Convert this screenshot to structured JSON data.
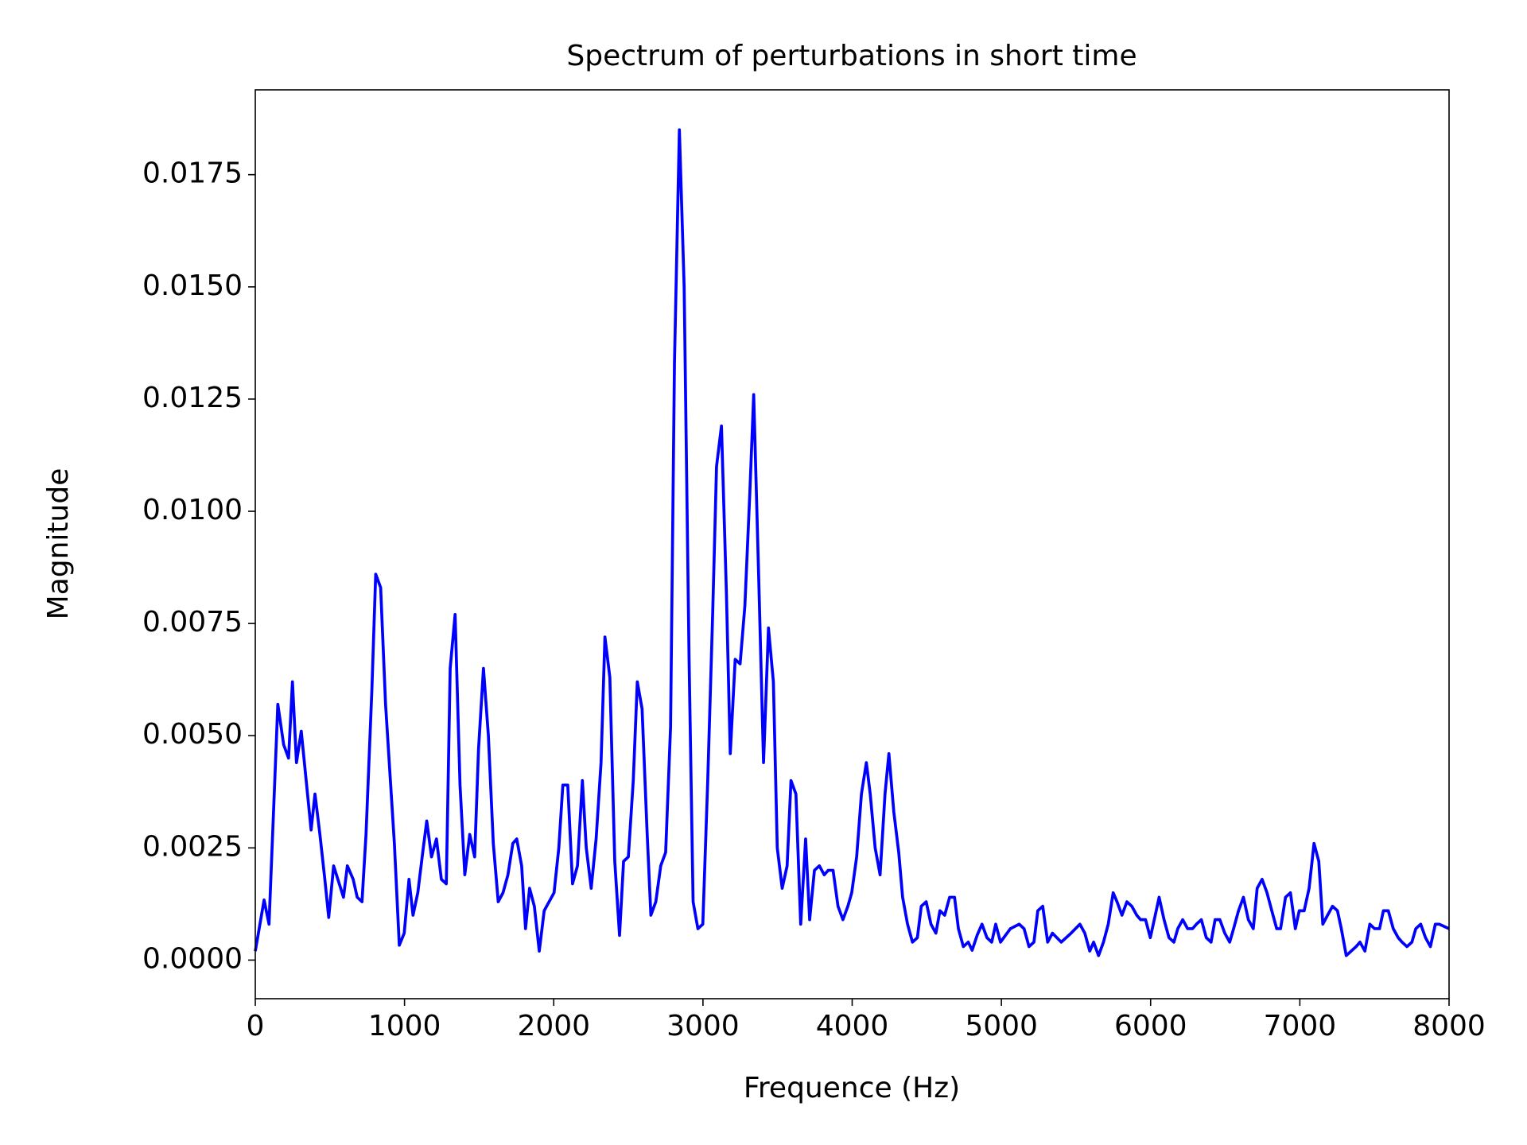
{
  "chart_data": {
    "type": "line",
    "title": "Spectrum of perturbations in short time",
    "x_label": "Frequence (Hz)",
    "y_label": "Magnitude",
    "xlim": [
      0,
      8000
    ],
    "ylim": [
      -0.00086,
      0.01939
    ],
    "xticks": [
      0,
      1000,
      2000,
      3000,
      4000,
      5000,
      6000,
      7000,
      8000
    ],
    "yticks": [
      {
        "value": 0,
        "label": "0.0000"
      },
      {
        "value": 0.0025,
        "label": "0.0025"
      },
      {
        "value": 0.005,
        "label": "0.0050"
      },
      {
        "value": 0.0075,
        "label": "0.0075"
      },
      {
        "value": 0.01,
        "label": "0.0100"
      },
      {
        "value": 0.0125,
        "label": "0.0125"
      },
      {
        "value": 0.015,
        "label": "0.0150"
      },
      {
        "value": 0.0175,
        "label": "0.0175"
      }
    ],
    "grid": false,
    "series": [
      {
        "color": "#0000ff",
        "x": [
          0,
          59,
          92,
          151,
          190,
          223,
          249,
          276,
          308,
          374,
          400,
          433,
          466,
          492,
          525,
          591,
          617,
          656,
          683,
          715,
          742,
          781,
          807,
          840,
          873,
          932,
          965,
          998,
          1030,
          1057,
          1089,
          1122,
          1149,
          1181,
          1214,
          1247,
          1280,
          1306,
          1339,
          1372,
          1404,
          1437,
          1470,
          1496,
          1529,
          1562,
          1595,
          1628,
          1660,
          1693,
          1726,
          1752,
          1785,
          1811,
          1838,
          1870,
          1903,
          1936,
          2002,
          2034,
          2061,
          2094,
          2126,
          2159,
          2192,
          2218,
          2251,
          2284,
          2317,
          2343,
          2376,
          2409,
          2441,
          2468,
          2500,
          2533,
          2560,
          2592,
          2625,
          2651,
          2684,
          2717,
          2750,
          2783,
          2809,
          2842,
          2874,
          2907,
          2934,
          2966,
          2999,
          3032,
          3065,
          3091,
          3124,
          3157,
          3183,
          3216,
          3249,
          3281,
          3314,
          3340,
          3373,
          3406,
          3439,
          3472,
          3498,
          3531,
          3564,
          3590,
          3623,
          3655,
          3688,
          3715,
          3747,
          3780,
          3813,
          3839,
          3872,
          3905,
          3938,
          3971,
          3997,
          4030,
          4062,
          4095,
          4121,
          4154,
          4187,
          4220,
          4246,
          4279,
          4312,
          4338,
          4371,
          4404,
          4437,
          4463,
          4496,
          4528,
          4561,
          4588,
          4620,
          4653,
          4686,
          4712,
          4745,
          4778,
          4804,
          4837,
          4870,
          4903,
          4935,
          4962,
          4994,
          5060,
          5119,
          5152,
          5185,
          5218,
          5244,
          5277,
          5310,
          5342,
          5401,
          5434,
          5467,
          5526,
          5559,
          5592,
          5618,
          5651,
          5684,
          5716,
          5749,
          5775,
          5808,
          5841,
          5874,
          5907,
          5933,
          5966,
          5998,
          6031,
          6057,
          6090,
          6123,
          6156,
          6182,
          6215,
          6248,
          6281,
          6307,
          6340,
          6373,
          6405,
          6432,
          6464,
          6497,
          6530,
          6556,
          6589,
          6622,
          6655,
          6688,
          6714,
          6747,
          6780,
          6812,
          6845,
          6871,
          6904,
          6937,
          6970,
          6996,
          7029,
          7062,
          7095,
          7127,
          7154,
          7186,
          7219,
          7252,
          7278,
          7311,
          7344,
          7377,
          7403,
          7436,
          7469,
          7501,
          7534,
          7560,
          7593,
          7626,
          7659,
          7685,
          7718,
          7751,
          7777,
          7810,
          7842,
          7875,
          7908,
          7934,
          8000
        ],
        "values": [
          0.0002,
          0.00134,
          0.0008,
          0.0057,
          0.0048,
          0.0045,
          0.0062,
          0.0044,
          0.0051,
          0.0029,
          0.0037,
          0.0028,
          0.0018,
          0.00095,
          0.0021,
          0.0014,
          0.0021,
          0.0018,
          0.0014,
          0.0013,
          0.0028,
          0.006,
          0.0086,
          0.0083,
          0.0057,
          0.0026,
          0.00033,
          0.0006,
          0.0018,
          0.001,
          0.0015,
          0.0024,
          0.0031,
          0.0023,
          0.0027,
          0.0018,
          0.0017,
          0.0065,
          0.0077,
          0.0039,
          0.0019,
          0.0028,
          0.0023,
          0.0047,
          0.0065,
          0.005,
          0.0026,
          0.0013,
          0.0015,
          0.0019,
          0.0026,
          0.0027,
          0.0021,
          0.0007,
          0.0016,
          0.0012,
          0.0002,
          0.0011,
          0.0015,
          0.0025,
          0.0039,
          0.0039,
          0.0017,
          0.0021,
          0.004,
          0.0025,
          0.0016,
          0.0027,
          0.0044,
          0.0072,
          0.0063,
          0.0022,
          0.00055,
          0.0022,
          0.0023,
          0.004,
          0.0062,
          0.0056,
          0.0029,
          0.001,
          0.0013,
          0.0021,
          0.0024,
          0.0052,
          0.0133,
          0.0185,
          0.015,
          0.0067,
          0.0013,
          0.0007,
          0.0008,
          0.004,
          0.0077,
          0.011,
          0.0119,
          0.0082,
          0.0046,
          0.0067,
          0.0066,
          0.0079,
          0.0104,
          0.0126,
          0.0086,
          0.0044,
          0.0074,
          0.0062,
          0.0025,
          0.0016,
          0.0021,
          0.004,
          0.0037,
          0.0008,
          0.0027,
          0.0009,
          0.002,
          0.0021,
          0.0019,
          0.002,
          0.002,
          0.0012,
          0.0009,
          0.0012,
          0.0015,
          0.0023,
          0.0037,
          0.0044,
          0.0037,
          0.0025,
          0.0019,
          0.0037,
          0.0046,
          0.0033,
          0.0024,
          0.0014,
          0.0008,
          0.0004,
          0.0005,
          0.0012,
          0.0013,
          0.0008,
          0.0006,
          0.0011,
          0.001,
          0.0014,
          0.0014,
          0.0007,
          0.0003,
          0.0004,
          0.00022,
          0.00055,
          0.0008,
          0.0005,
          0.0004,
          0.0008,
          0.0004,
          0.0007,
          0.0008,
          0.0007,
          0.0003,
          0.0004,
          0.0011,
          0.0012,
          0.0004,
          0.0006,
          0.0004,
          0.0005,
          0.0006,
          0.0008,
          0.0006,
          0.0002,
          0.0004,
          0.0001,
          0.0004,
          0.0008,
          0.0015,
          0.0013,
          0.001,
          0.0013,
          0.0012,
          0.001,
          0.0009,
          0.0009,
          0.0005,
          0.001,
          0.0014,
          0.0009,
          0.0005,
          0.0004,
          0.0007,
          0.0009,
          0.0007,
          0.0007,
          0.0008,
          0.0009,
          0.0005,
          0.0004,
          0.0009,
          0.0009,
          0.0006,
          0.0004,
          0.0007,
          0.0011,
          0.0014,
          0.0009,
          0.0007,
          0.0016,
          0.0018,
          0.0015,
          0.0011,
          0.0007,
          0.0007,
          0.0014,
          0.0015,
          0.0007,
          0.0011,
          0.0011,
          0.0016,
          0.0026,
          0.0022,
          0.0008,
          0.001,
          0.0012,
          0.0011,
          0.0007,
          0.0001,
          0.0002,
          0.0003,
          0.0004,
          0.0002,
          0.0008,
          0.0007,
          0.0007,
          0.0011,
          0.0011,
          0.0007,
          0.0005,
          0.0004,
          0.0003,
          0.0004,
          0.0007,
          0.0008,
          0.0005,
          0.0003,
          0.0008,
          0.0008,
          0.0007
        ]
      }
    ]
  }
}
